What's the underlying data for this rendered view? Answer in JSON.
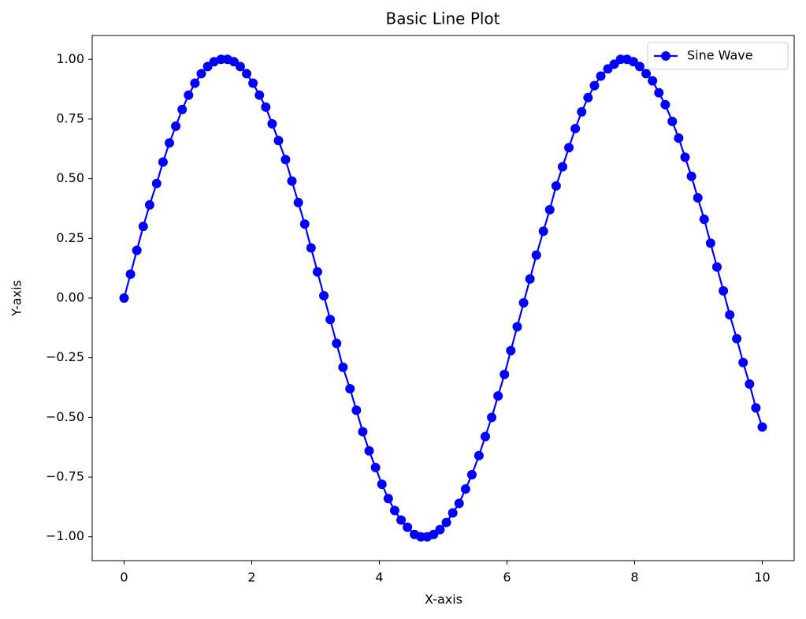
{
  "chart_data": {
    "type": "line",
    "title": "Basic Line Plot",
    "x_label": "X-axis",
    "y_label": "Y-axis",
    "x": [
      0,
      0.1,
      0.2,
      0.3,
      0.4,
      0.51,
      0.61,
      0.71,
      0.81,
      0.91,
      1.01,
      1.11,
      1.21,
      1.31,
      1.41,
      1.52,
      1.62,
      1.72,
      1.82,
      1.92,
      2.02,
      2.12,
      2.22,
      2.32,
      2.42,
      2.53,
      2.63,
      2.73,
      2.83,
      2.93,
      3.03,
      3.13,
      3.23,
      3.33,
      3.43,
      3.54,
      3.64,
      3.74,
      3.84,
      3.94,
      4.04,
      4.14,
      4.24,
      4.34,
      4.44,
      4.55,
      4.65,
      4.75,
      4.85,
      4.95,
      5.05,
      5.15,
      5.25,
      5.35,
      5.45,
      5.56,
      5.66,
      5.76,
      5.86,
      5.96,
      6.06,
      6.16,
      6.26,
      6.36,
      6.46,
      6.57,
      6.67,
      6.77,
      6.87,
      6.97,
      7.07,
      7.17,
      7.27,
      7.37,
      7.47,
      7.58,
      7.68,
      7.78,
      7.88,
      7.98,
      8.08,
      8.18,
      8.28,
      8.38,
      8.48,
      8.59,
      8.69,
      8.79,
      8.89,
      8.99,
      9.09,
      9.19,
      9.29,
      9.39,
      9.49,
      9.6,
      9.7,
      9.8,
      9.9,
      10
    ],
    "series": [
      {
        "name": "Sine Wave",
        "color": "#0000ff",
        "marker": "o",
        "values": [
          0,
          0.1,
          0.2,
          0.3,
          0.39,
          0.48,
          0.57,
          0.65,
          0.72,
          0.79,
          0.85,
          0.9,
          0.94,
          0.97,
          0.99,
          1.0,
          1.0,
          0.99,
          0.97,
          0.94,
          0.9,
          0.85,
          0.8,
          0.73,
          0.66,
          0.58,
          0.49,
          0.4,
          0.31,
          0.21,
          0.11,
          0.01,
          -0.09,
          -0.19,
          -0.29,
          -0.38,
          -0.47,
          -0.56,
          -0.64,
          -0.71,
          -0.78,
          -0.84,
          -0.89,
          -0.93,
          -0.96,
          -0.99,
          -1.0,
          -1.0,
          -0.99,
          -0.97,
          -0.94,
          -0.9,
          -0.86,
          -0.8,
          -0.74,
          -0.66,
          -0.58,
          -0.5,
          -0.41,
          -0.32,
          -0.22,
          -0.12,
          -0.02,
          0.08,
          0.18,
          0.28,
          0.37,
          0.47,
          0.55,
          0.63,
          0.71,
          0.78,
          0.84,
          0.89,
          0.93,
          0.96,
          0.98,
          1.0,
          1.0,
          0.99,
          0.97,
          0.94,
          0.91,
          0.86,
          0.81,
          0.74,
          0.67,
          0.59,
          0.51,
          0.42,
          0.33,
          0.23,
          0.13,
          0.03,
          -0.07,
          -0.17,
          -0.27,
          -0.36,
          -0.46,
          -0.54
        ]
      }
    ],
    "xlim": [
      -0.5,
      10.5
    ],
    "ylim": [
      -1.1,
      1.1
    ],
    "xticks": [
      0,
      2,
      4,
      6,
      8,
      10
    ],
    "yticks": [
      {
        "value": -1,
        "label": "−1.00"
      },
      {
        "value": -0.75,
        "label": "−0.75"
      },
      {
        "value": -0.5,
        "label": "−0.50"
      },
      {
        "value": -0.25,
        "label": "−0.25"
      },
      {
        "value": 0,
        "label": "0.00"
      },
      {
        "value": 0.25,
        "label": "0.25"
      },
      {
        "value": 0.5,
        "label": "0.50"
      },
      {
        "value": 0.75,
        "label": "0.75"
      },
      {
        "value": 1,
        "label": "1.00"
      }
    ],
    "legend": "upper right"
  }
}
